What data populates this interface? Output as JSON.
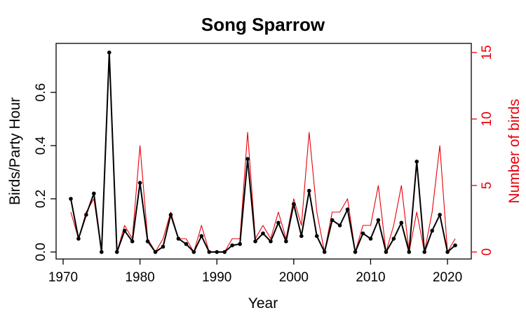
{
  "chart_data": {
    "type": "line",
    "title": "Song Sparrow",
    "xlabel": "Year",
    "ylabel": "Birds/Party Hour",
    "y2label": "Number of birds",
    "xlim": [
      1970,
      2022
    ],
    "ylim": [
      0,
      0.75
    ],
    "y2lim": [
      0,
      15
    ],
    "x_ticks": [
      1970,
      1980,
      1990,
      2000,
      2010,
      2020
    ],
    "y_ticks": [
      "0.0",
      "0.2",
      "0.4",
      "0.6"
    ],
    "y2_ticks": [
      "0",
      "5",
      "10",
      "15"
    ],
    "x": [
      1971,
      1972,
      1973,
      1974,
      1975,
      1976,
      1977,
      1978,
      1979,
      1980,
      1981,
      1982,
      1983,
      1984,
      1985,
      1986,
      1987,
      1988,
      1989,
      1990,
      1991,
      1992,
      1993,
      1994,
      1995,
      1996,
      1997,
      1998,
      1999,
      2000,
      2001,
      2002,
      2003,
      2004,
      2005,
      2006,
      2007,
      2008,
      2009,
      2010,
      2011,
      2012,
      2013,
      2014,
      2015,
      2016,
      2017,
      2018,
      2019,
      2020,
      2021
    ],
    "series": [
      {
        "color": "#000000",
        "axis": "left",
        "markers": true,
        "values": [
          0.2,
          0.05,
          0.14,
          0.22,
          0.0,
          0.75,
          0.0,
          0.08,
          0.04,
          0.26,
          0.04,
          0.0,
          0.02,
          0.14,
          0.05,
          0.03,
          0.0,
          0.06,
          0.0,
          0.0,
          0.0,
          0.025,
          0.03,
          0.35,
          0.04,
          0.07,
          0.04,
          0.11,
          0.04,
          0.18,
          0.06,
          0.23,
          0.06,
          0.0,
          0.12,
          0.1,
          0.16,
          0.0,
          0.07,
          0.05,
          0.12,
          0.0,
          0.05,
          0.11,
          0.0,
          0.34,
          0.0,
          0.08,
          0.14,
          0.0,
          0.025
        ]
      },
      {
        "color": "#e8000b",
        "axis": "right",
        "markers": false,
        "values": [
          3,
          1,
          3,
          4,
          0,
          15,
          0,
          2,
          1,
          8,
          1,
          0,
          1,
          3,
          1,
          1,
          0,
          2,
          0,
          0,
          0,
          1,
          1,
          9,
          1,
          2,
          1,
          3,
          1,
          4,
          2,
          9,
          3,
          0,
          3,
          3,
          4,
          0,
          2,
          2,
          5,
          0,
          2,
          5,
          0,
          3,
          0,
          3,
          8,
          0,
          1
        ]
      }
    ]
  }
}
